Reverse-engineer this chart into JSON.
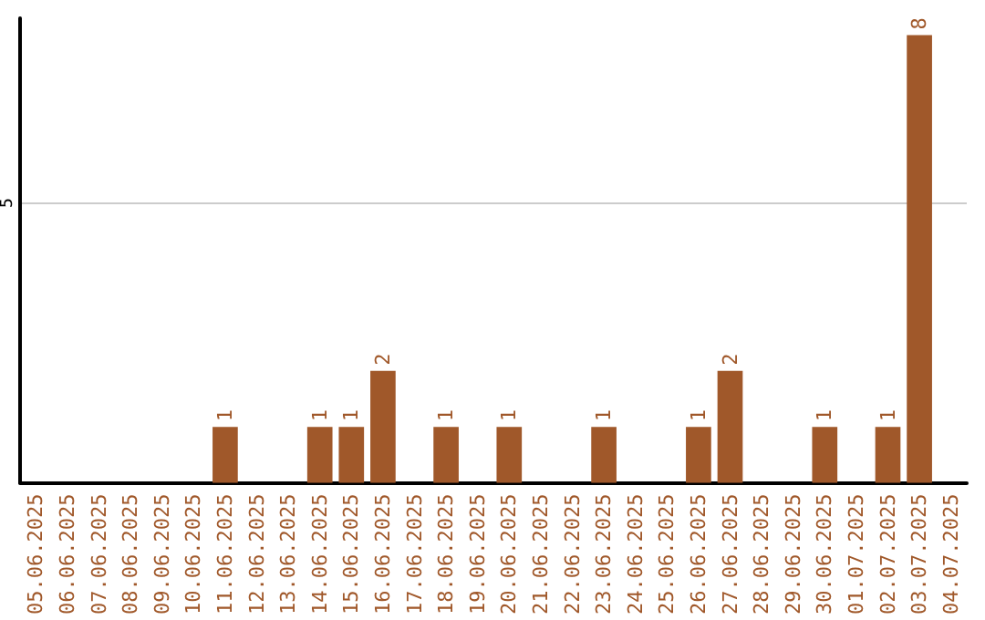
{
  "chart_data": {
    "type": "bar",
    "categories": [
      "05.06.2025",
      "06.06.2025",
      "07.06.2025",
      "08.06.2025",
      "09.06.2025",
      "10.06.2025",
      "11.06.2025",
      "12.06.2025",
      "13.06.2025",
      "14.06.2025",
      "15.06.2025",
      "16.06.2025",
      "17.06.2025",
      "18.06.2025",
      "19.06.2025",
      "20.06.2025",
      "21.06.2025",
      "22.06.2025",
      "23.06.2025",
      "24.06.2025",
      "25.06.2025",
      "26.06.2025",
      "27.06.2025",
      "28.06.2025",
      "29.06.2025",
      "30.06.2025",
      "01.07.2025",
      "02.07.2025",
      "03.07.2025",
      "04.07.2025"
    ],
    "values": [
      0,
      0,
      0,
      0,
      0,
      0,
      1,
      0,
      0,
      1,
      1,
      2,
      0,
      1,
      0,
      1,
      0,
      0,
      1,
      0,
      0,
      1,
      2,
      0,
      0,
      1,
      0,
      1,
      8,
      0
    ],
    "value_labels": [
      null,
      null,
      null,
      null,
      null,
      null,
      "1",
      null,
      null,
      "1",
      "1",
      "2",
      null,
      "1",
      null,
      "1",
      null,
      null,
      "1",
      null,
      null,
      "1",
      "2",
      null,
      null,
      "1",
      null,
      "1",
      "8",
      null
    ],
    "color": "#a0582a",
    "ylim": [
      0,
      8.3
    ],
    "yticks": [
      5
    ],
    "grid": "y"
  }
}
